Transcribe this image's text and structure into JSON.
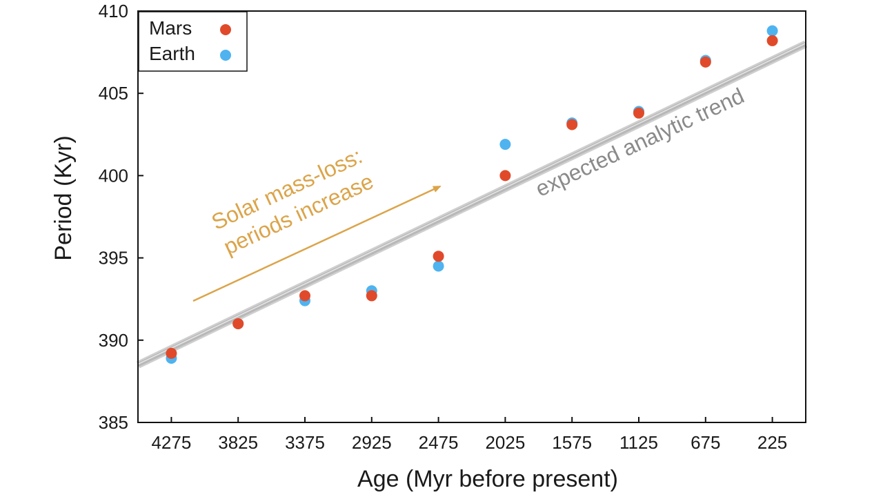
{
  "chart_data": {
    "type": "scatter",
    "xlabel": "Age (Myr before present)",
    "ylabel": "Period (Kyr)",
    "categories": [
      "4275",
      "3825",
      "3375",
      "2925",
      "2475",
      "2025",
      "1575",
      "1125",
      "675",
      "225"
    ],
    "x": [
      4275,
      3825,
      3375,
      2925,
      2475,
      2025,
      1575,
      1125,
      675,
      225
    ],
    "xlim": [
      4500,
      0
    ],
    "ylim": [
      385,
      410
    ],
    "yticks": [
      385,
      390,
      395,
      400,
      405,
      410
    ],
    "grid": false,
    "legend_position": "top-left",
    "series": [
      {
        "name": "Earth",
        "color": "#4fb3f0",
        "values": [
          388.9,
          391.0,
          392.4,
          393.0,
          394.5,
          401.9,
          403.2,
          403.9,
          407.0,
          408.8
        ]
      },
      {
        "name": "Mars",
        "color": "#e04a2a",
        "values": [
          389.2,
          391.0,
          392.7,
          392.7,
          395.1,
          400.0,
          403.1,
          403.8,
          406.9,
          408.2
        ]
      }
    ],
    "trend_line": {
      "label": "expected analytic trend",
      "color": "#b8b8b8",
      "x": [
        4500,
        0
      ],
      "y": [
        388.5,
        408.0
      ]
    },
    "annotation": {
      "lines": [
        "Solar mass-loss:",
        "periods increase"
      ],
      "color": "#dba44a"
    }
  }
}
